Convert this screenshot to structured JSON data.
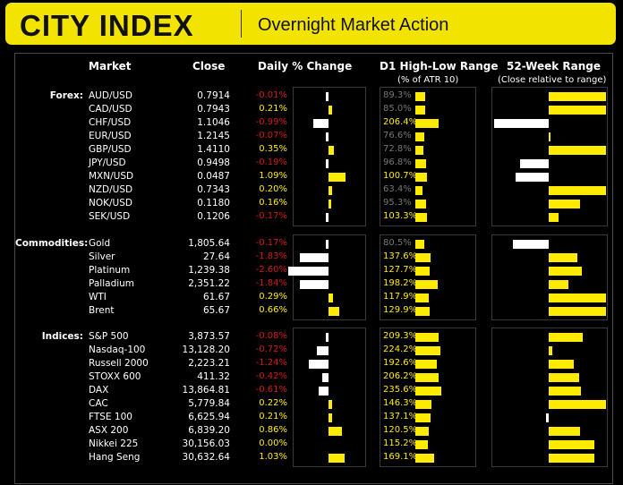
{
  "header": {
    "brand": "CITY INDEX",
    "title": "Overnight Market Action"
  },
  "columns": {
    "market": "Market",
    "close": "Close",
    "daily": "Daily % Change",
    "range": "D1 High-Low Range",
    "range_sub": "(% of ATR 10)",
    "week52": "52-Week Range",
    "week52_sub": "(Close relative to range)"
  },
  "colors": {
    "brand_yellow": "#f2e300",
    "positive": "#ffeb00",
    "negative": "#d21a1a",
    "neutral_text": "#777777"
  },
  "groups": [
    {
      "label": "Forex:",
      "rows": [
        {
          "name": "AUD/USD",
          "close": "0.7914",
          "chg": "-0.01%",
          "chg_val": -0.01,
          "range": "89.3%",
          "range_val": 89.3,
          "w52": 1.0
        },
        {
          "name": "CAD/USD",
          "close": "0.7943",
          "chg": "0.21%",
          "chg_val": 0.21,
          "range": "85.0%",
          "range_val": 85.0,
          "w52": 1.0
        },
        {
          "name": "CHF/USD",
          "close": "1.1046",
          "chg": "-0.99%",
          "chg_val": -0.99,
          "range": "206.4%",
          "range_val": 206.4,
          "w52": -0.96
        },
        {
          "name": "EUR/USD",
          "close": "1.2145",
          "chg": "-0.07%",
          "chg_val": -0.07,
          "range": "76.6%",
          "range_val": 76.6,
          "w52": 0.03
        },
        {
          "name": "GBP/USD",
          "close": "1.4110",
          "chg": "0.35%",
          "chg_val": 0.35,
          "range": "72.8%",
          "range_val": 72.8,
          "w52": 1.0
        },
        {
          "name": "JPY/USD",
          "close": "0.9498",
          "chg": "-0.19%",
          "chg_val": -0.19,
          "range": "96.8%",
          "range_val": 96.8,
          "w52": -0.5
        },
        {
          "name": "MXN/USD",
          "close": "0.0487",
          "chg": "1.09%",
          "chg_val": 1.09,
          "range": "100.7%",
          "range_val": 100.7,
          "w52": -0.58
        },
        {
          "name": "NZD/USD",
          "close": "0.7343",
          "chg": "0.20%",
          "chg_val": 0.2,
          "range": "63.4%",
          "range_val": 63.4,
          "w52": 1.0
        },
        {
          "name": "NOK/USD",
          "close": "0.1180",
          "chg": "0.16%",
          "chg_val": 0.16,
          "range": "95.3%",
          "range_val": 95.3,
          "w52": 0.55
        },
        {
          "name": "SEK/USD",
          "close": "0.1206",
          "chg": "-0.17%",
          "chg_val": -0.17,
          "range": "103.3%",
          "range_val": 103.3,
          "w52": 0.17
        }
      ]
    },
    {
      "label": "Commodities:",
      "rows": [
        {
          "name": "Gold",
          "close": "1,805.64",
          "chg": "-0.17%",
          "chg_val": -0.17,
          "range": "80.5%",
          "range_val": 80.5,
          "w52": -0.62
        },
        {
          "name": "Silver",
          "close": "27.64",
          "chg": "-1.83%",
          "chg_val": -1.83,
          "range": "137.6%",
          "range_val": 137.6,
          "w52": 0.5
        },
        {
          "name": "Platinum",
          "close": "1,239.38",
          "chg": "-2.60%",
          "chg_val": -2.6,
          "range": "127.7%",
          "range_val": 127.7,
          "w52": 0.58
        },
        {
          "name": "Palladium",
          "close": "2,351.22",
          "chg": "-1.84%",
          "chg_val": -1.84,
          "range": "198.2%",
          "range_val": 198.2,
          "w52": 0.34
        },
        {
          "name": "WTI",
          "close": "61.67",
          "chg": "0.29%",
          "chg_val": 0.29,
          "range": "117.9%",
          "range_val": 117.9,
          "w52": 1.0
        },
        {
          "name": "Brent",
          "close": "65.67",
          "chg": "0.66%",
          "chg_val": 0.66,
          "range": "129.9%",
          "range_val": 129.9,
          "w52": 1.0
        }
      ]
    },
    {
      "label": "Indices:",
      "rows": [
        {
          "name": "S&P 500",
          "close": "3,873.57",
          "chg": "-0.08%",
          "chg_val": -0.08,
          "range": "209.3%",
          "range_val": 209.3,
          "w52": 0.6
        },
        {
          "name": "Nasdaq-100",
          "close": "13,128.20",
          "chg": "-0.72%",
          "chg_val": -0.72,
          "range": "224.2%",
          "range_val": 224.2,
          "w52": 0.06
        },
        {
          "name": "Russell 2000",
          "close": "2,223.21",
          "chg": "-1.24%",
          "chg_val": -1.24,
          "range": "192.6%",
          "range_val": 192.6,
          "w52": 0.43
        },
        {
          "name": "STOXX 600",
          "close": "411.32",
          "chg": "-0.42%",
          "chg_val": -0.42,
          "range": "206.2%",
          "range_val": 206.2,
          "w52": 0.53
        },
        {
          "name": "DAX",
          "close": "13,864.81",
          "chg": "-0.61%",
          "chg_val": -0.61,
          "range": "235.6%",
          "range_val": 235.6,
          "w52": 0.56
        },
        {
          "name": "CAC",
          "close": "5,779.84",
          "chg": "0.22%",
          "chg_val": 0.22,
          "range": "146.3%",
          "range_val": 146.3,
          "w52": 1.0
        },
        {
          "name": "FTSE 100",
          "close": "6,625.94",
          "chg": "0.21%",
          "chg_val": 0.21,
          "range": "137.1%",
          "range_val": 137.1,
          "w52": -0.04
        },
        {
          "name": "ASX 200",
          "close": "6,839.20",
          "chg": "0.86%",
          "chg_val": 0.86,
          "range": "120.5%",
          "range_val": 120.5,
          "w52": 0.55
        },
        {
          "name": "Nikkei 225",
          "close": "30,156.03",
          "chg": "0.00%",
          "chg_val": 0.0,
          "range": "115.2%",
          "range_val": 115.2,
          "w52": 0.8
        },
        {
          "name": "Hang Seng",
          "close": "30,632.64",
          "chg": "1.03%",
          "chg_val": 1.03,
          "range": "169.1%",
          "range_val": 169.1,
          "w52": 0.8
        }
      ]
    }
  ]
}
